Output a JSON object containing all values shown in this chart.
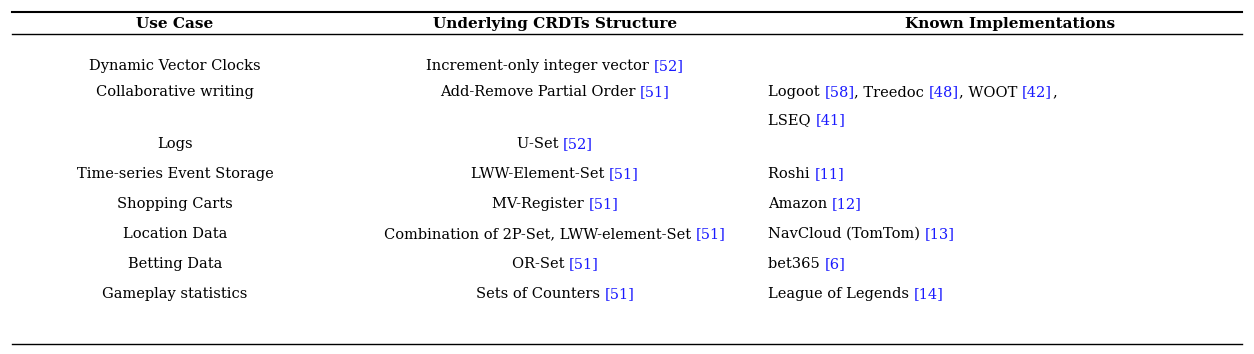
{
  "headers": [
    "Use Case",
    "Underlying CRDTs Structure",
    "Known Implementations"
  ],
  "link_color": "#1a1aff",
  "text_color": "#000000",
  "background_color": "#ffffff",
  "header_fontsize": 11,
  "body_fontsize": 10.5,
  "rows": [
    {
      "use_case": "Dynamic Vector Clocks",
      "crdt_parts": [
        [
          "Increment-only integer vector ",
          false
        ],
        [
          "[52]",
          true
        ]
      ],
      "crdt_parts2": null,
      "impl_parts": null,
      "impl_parts2": null
    },
    {
      "use_case": "Collaborative writing",
      "crdt_parts": [
        [
          "Add-Remove Partial Order ",
          false
        ],
        [
          "[51]",
          true
        ]
      ],
      "crdt_parts2": null,
      "impl_parts": [
        [
          "Logoot ",
          false
        ],
        [
          "[58]",
          true
        ],
        [
          ", Treedoc ",
          false
        ],
        [
          "[48]",
          true
        ],
        [
          ", WOOT ",
          false
        ],
        [
          "[42]",
          true
        ],
        [
          ",",
          false
        ]
      ],
      "impl_parts2": [
        [
          "LSEQ ",
          false
        ],
        [
          "[41]",
          true
        ]
      ]
    },
    {
      "use_case": "Logs",
      "crdt_parts": [
        [
          "U-Set ",
          false
        ],
        [
          "[52]",
          true
        ]
      ],
      "crdt_parts2": null,
      "impl_parts": null,
      "impl_parts2": null
    },
    {
      "use_case": "Time-series Event Storage",
      "crdt_parts": [
        [
          "LWW-Element-Set ",
          false
        ],
        [
          "[51]",
          true
        ]
      ],
      "crdt_parts2": null,
      "impl_parts": [
        [
          "Roshi ",
          false
        ],
        [
          "[11]",
          true
        ]
      ],
      "impl_parts2": null
    },
    {
      "use_case": "Shopping Carts",
      "crdt_parts": [
        [
          "MV-Register ",
          false
        ],
        [
          "[51]",
          true
        ]
      ],
      "crdt_parts2": null,
      "impl_parts": [
        [
          "Amazon ",
          false
        ],
        [
          "[12]",
          true
        ]
      ],
      "impl_parts2": null
    },
    {
      "use_case": "Location Data",
      "crdt_parts": [
        [
          "Combination of 2P-Set, LWW-element-Set ",
          false
        ],
        [
          "[51]",
          true
        ]
      ],
      "crdt_parts2": null,
      "impl_parts": [
        [
          "NavCloud (TomTom) ",
          false
        ],
        [
          "[13]",
          true
        ]
      ],
      "impl_parts2": null
    },
    {
      "use_case": "Betting Data",
      "crdt_parts": [
        [
          "OR-Set ",
          false
        ],
        [
          "[51]",
          true
        ]
      ],
      "crdt_parts2": null,
      "impl_parts": [
        [
          "bet365 ",
          false
        ],
        [
          "[6]",
          true
        ]
      ],
      "impl_parts2": null
    },
    {
      "use_case": "Gameplay statistics",
      "crdt_parts": [
        [
          "Sets of Counters ",
          false
        ],
        [
          "[51]",
          true
        ]
      ],
      "crdt_parts2": null,
      "impl_parts": [
        [
          "League of Legends ",
          false
        ],
        [
          "[14]",
          true
        ]
      ],
      "impl_parts2": null
    }
  ]
}
